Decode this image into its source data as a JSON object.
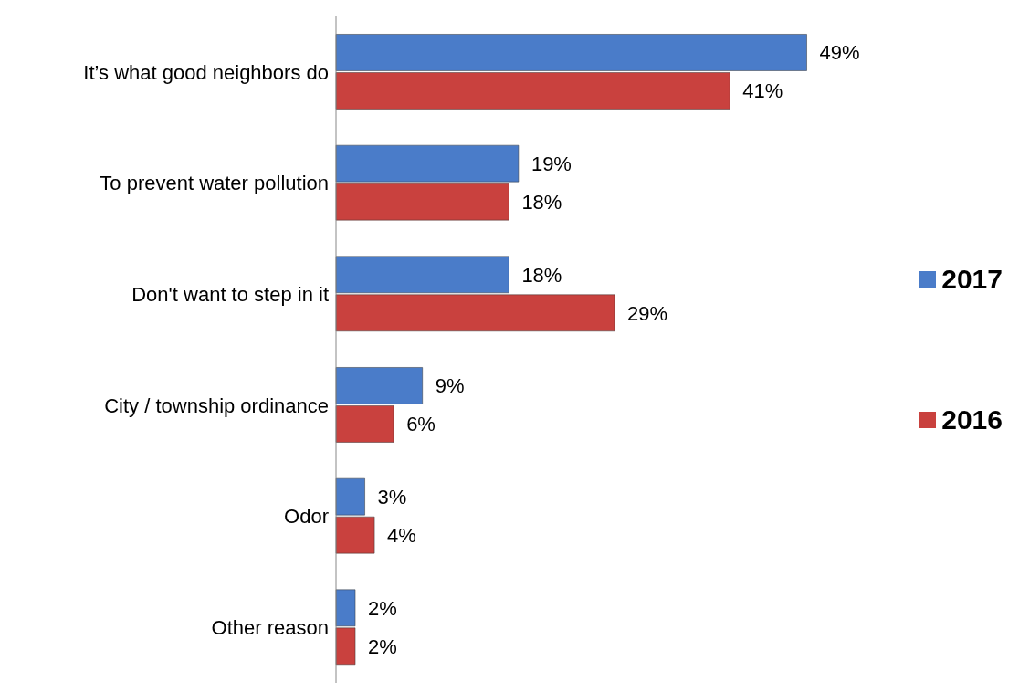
{
  "chart_data": {
    "type": "bar",
    "orientation": "horizontal",
    "categories": [
      "It’s what good neighbors do",
      "To prevent water pollution",
      "Don't want to step in it",
      "City / township ordinance",
      "Odor",
      "Other reason"
    ],
    "series": [
      {
        "name": "2017",
        "color": "#4a7cc9",
        "values": [
          49,
          19,
          18,
          9,
          3,
          2
        ],
        "value_labels": [
          "49%",
          "19%",
          "18%",
          "9%",
          "3%",
          "2%"
        ]
      },
      {
        "name": "2016",
        "color": "#c9413e",
        "values": [
          41,
          18,
          29,
          6,
          4,
          2
        ],
        "value_labels": [
          "41%",
          "18%",
          "29%",
          "6%",
          "4%",
          "2%"
        ]
      }
    ],
    "legend": "right"
  }
}
